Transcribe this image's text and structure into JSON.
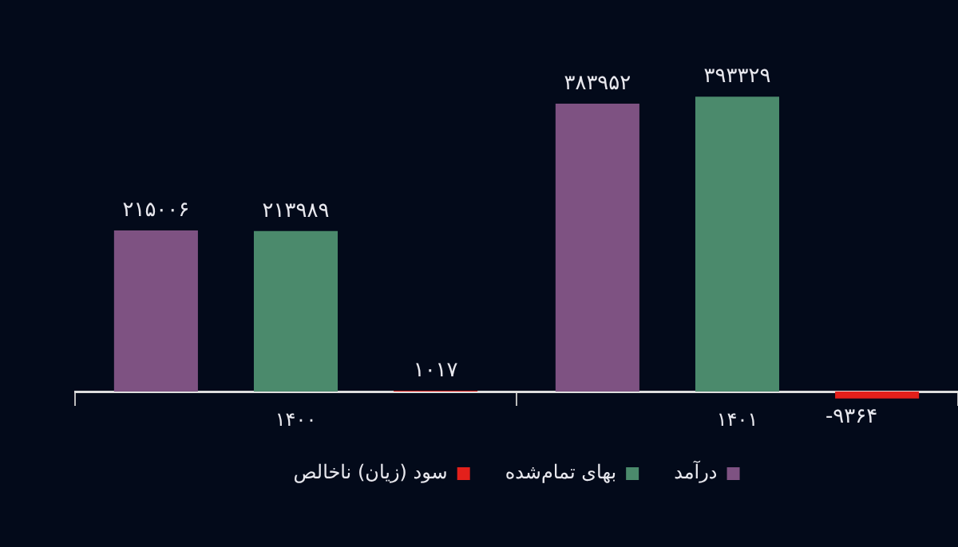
{
  "chart_data": {
    "type": "bar",
    "categories": [
      "۱۴۰۰",
      "۱۴۰۱"
    ],
    "series": [
      {
        "name": "درآمد",
        "color": "#7e5282",
        "values": [
          215006,
          383952
        ],
        "value_labels": [
          "۲۱۵۰۰۶",
          "۳۸۳۹۵۲"
        ]
      },
      {
        "name": "بهای تمام‌شده",
        "color": "#4b8a6c",
        "values": [
          213989,
          393329
        ],
        "value_labels": [
          "۲۱۳۹۸۹",
          "۳۹۳۳۲۹"
        ]
      },
      {
        "name": "سود (زیان) ناخالص",
        "color": "#e3201b",
        "values": [
          1017,
          -9364
        ],
        "value_labels": [
          "۱۰۱۷",
          "-۹۳۶۴"
        ]
      }
    ],
    "grid": false,
    "legend": "bottom"
  }
}
